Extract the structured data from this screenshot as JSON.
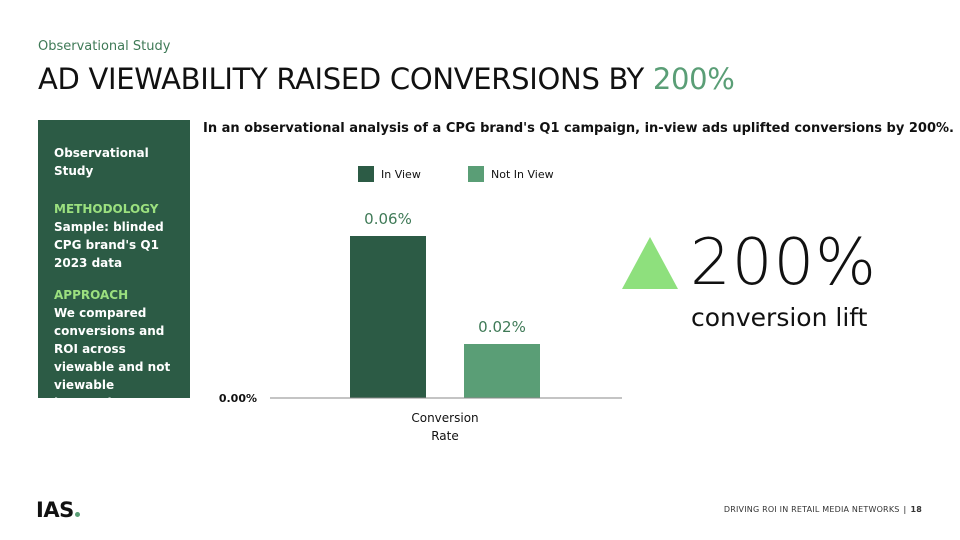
{
  "eyebrow": "Observational Study",
  "title": {
    "main": "AD VIEWABILITY RAISED CONVERSIONS BY",
    "highlight": "200%"
  },
  "sidebar": {
    "heading": "Observational Study",
    "methodology_label": "METHODOLOGY",
    "methodology_text": "Sample: blinded CPG brand's Q1 2023 data",
    "approach_label": "APPROACH",
    "approach_text": "We compared conversions and ROI across viewable and not viewable impressions"
  },
  "subtitle": "In an observational analysis of a CPG brand's Q1 campaign, in-view ads uplifted conversions by 200%.",
  "chart_data": {
    "type": "bar",
    "title": "",
    "categories": [
      "Conversion Rate"
    ],
    "series": [
      {
        "name": "In View",
        "values": [
          0.06
        ],
        "label": "0.06%",
        "color": "#2c5b45"
      },
      {
        "name": "Not In View",
        "values": [
          0.02
        ],
        "label": "0.02%",
        "color": "#5a9e76"
      }
    ],
    "ylim": [
      0,
      0.06
    ],
    "y_tick_labels": [
      "0.00%"
    ],
    "xlabel": "",
    "ylabel": "",
    "legend": "top",
    "grid": false
  },
  "stat": {
    "value": "200%",
    "label": "conversion lift",
    "triangle_color": "#8ee07d"
  },
  "logo": {
    "text": "IAS"
  },
  "footer": {
    "text": "DRIVING ROI IN RETAIL MEDIA NETWORKS",
    "separator": "|",
    "page": "18"
  },
  "colors": {
    "accent": "#5a9e76",
    "dark_green": "#2c5b45",
    "lime": "#9be07f"
  }
}
